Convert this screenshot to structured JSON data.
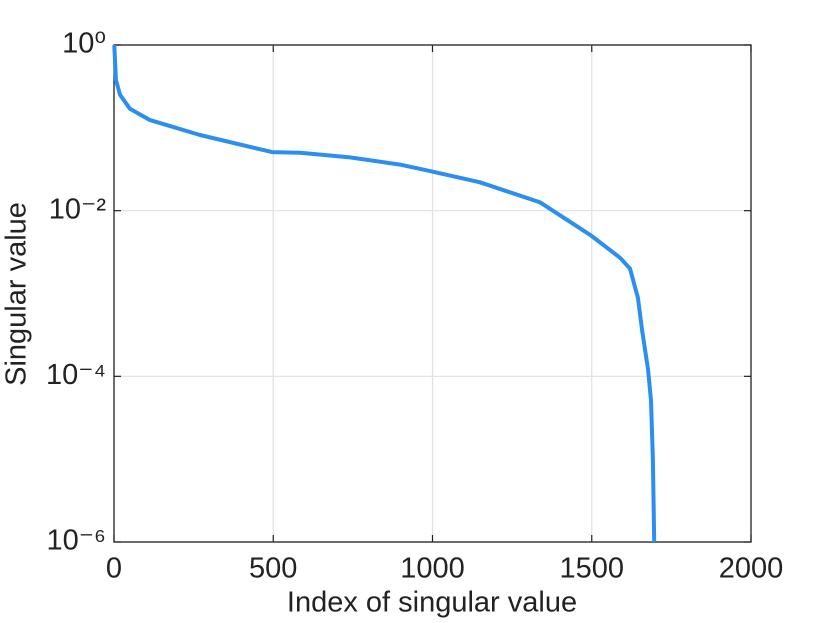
{
  "chart_data": {
    "type": "line",
    "xlabel": "Index of singular value",
    "ylabel": "Singular value",
    "x": [
      1,
      6,
      19,
      50,
      113,
      270,
      496,
      584,
      741,
      898,
      992,
      1149,
      1338,
      1495,
      1589,
      1620,
      1645,
      1658,
      1677,
      1686,
      1692,
      1696
    ],
    "series": [
      {
        "name": "Singular value",
        "color": "#2b8ef0",
        "values": [
          1,
          0.38,
          0.25,
          0.17,
          0.124,
          0.082,
          0.051,
          0.05,
          0.044,
          0.036,
          0.03,
          0.022,
          0.0126,
          0.0051,
          0.0027,
          0.002,
          0.00089,
          0.00036,
          0.00012,
          5.1e-05,
          9.8e-06,
          1e-06
        ]
      }
    ],
    "xlim": [
      0,
      2000
    ],
    "xticks": [
      0,
      500,
      1000,
      1500,
      2000
    ],
    "ylim": [
      1e-06,
      1
    ],
    "yticks": [
      {
        "value": 1,
        "label": "10⁰"
      },
      {
        "value": 0.01,
        "label": "10⁻²"
      },
      {
        "value": 0.0001,
        "label": "10⁻⁴"
      },
      {
        "value": 1e-06,
        "label": "10⁻⁶"
      }
    ],
    "ylog": true,
    "grid": true
  }
}
